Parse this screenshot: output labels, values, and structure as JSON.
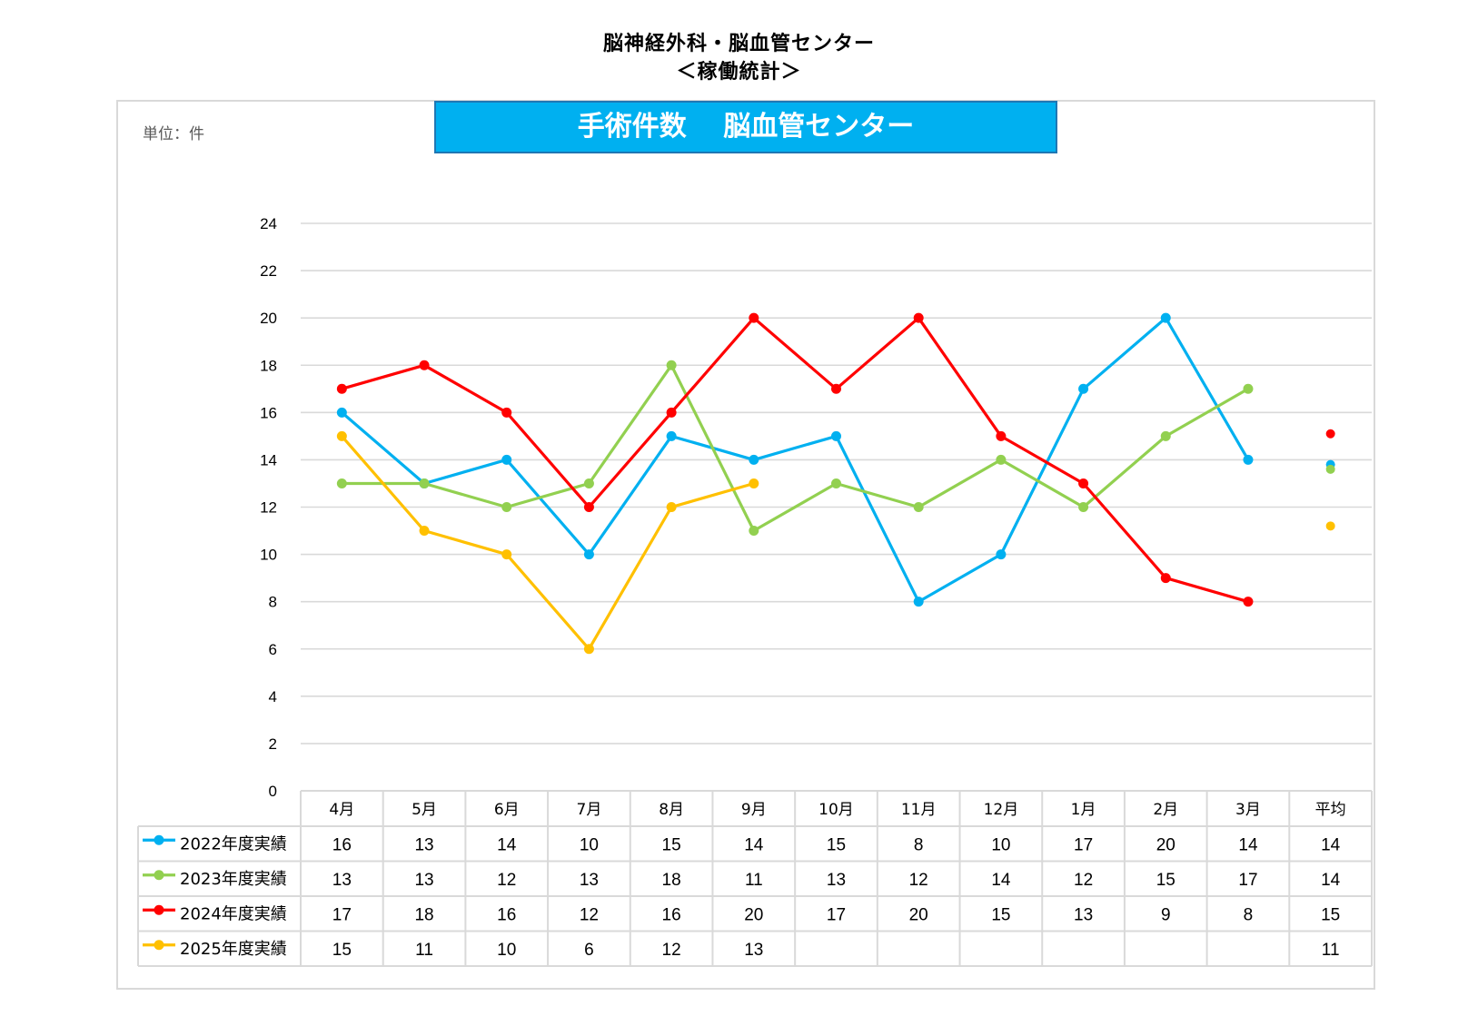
{
  "page": {
    "title_line1": "脳神経外科・脳血管センター",
    "title_line2": "＜稼働統計＞"
  },
  "chart_data": {
    "type": "line",
    "title": "手術件数　 脳血管センター",
    "unit_label": "単位：件",
    "categories": [
      "4月",
      "5月",
      "6月",
      "7月",
      "8月",
      "9月",
      "10月",
      "11月",
      "12月",
      "1月",
      "2月",
      "3月"
    ],
    "average_label": "平均",
    "ylim": [
      0,
      24
    ],
    "yticks": [
      0,
      2,
      4,
      6,
      8,
      10,
      12,
      14,
      16,
      18,
      20,
      22,
      24
    ],
    "grid": true,
    "legend": "data-table",
    "series": [
      {
        "name": "2022年度実績",
        "color": "#00b0f0",
        "values": [
          16,
          13,
          14,
          10,
          15,
          14,
          15,
          8,
          10,
          17,
          20,
          14
        ],
        "average": 13.8,
        "average_label": "14"
      },
      {
        "name": "2023年度実績",
        "color": "#92d050",
        "values": [
          13,
          13,
          12,
          13,
          18,
          11,
          13,
          12,
          14,
          12,
          15,
          17
        ],
        "average": 13.6,
        "average_label": "14"
      },
      {
        "name": "2024年度実績",
        "color": "#ff0000",
        "values": [
          17,
          18,
          16,
          12,
          16,
          20,
          17,
          20,
          15,
          13,
          9,
          8
        ],
        "average": 15.1,
        "average_label": "15"
      },
      {
        "name": "2025年度実績",
        "color": "#ffc000",
        "values": [
          15,
          11,
          10,
          6,
          12,
          13,
          null,
          null,
          null,
          null,
          null,
          null
        ],
        "average": 11.2,
        "average_label": "11"
      }
    ]
  }
}
